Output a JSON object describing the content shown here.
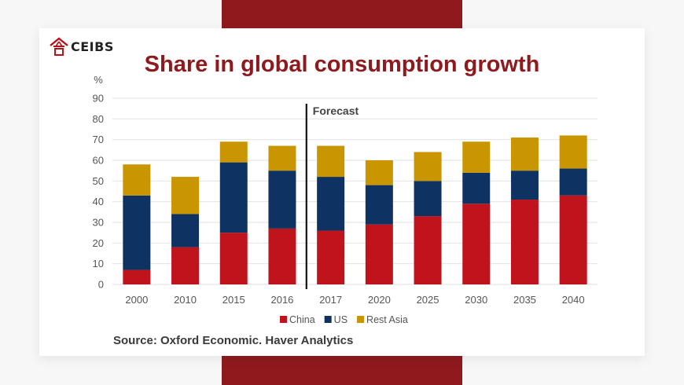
{
  "logo": {
    "text": "CEIBS",
    "icon": "ceibs-house-icon"
  },
  "source": "Source: Oxford Economic. Haver Analytics",
  "colors": {
    "china": "#c0141c",
    "us": "#0e3262",
    "rest_asia": "#c99500",
    "title": "#8f1a1e",
    "band": "#8f1a1e"
  },
  "chart_data": {
    "type": "bar",
    "stacked": true,
    "title": "Share in global consumption growth",
    "ylabel": "%",
    "xlabel": "",
    "ylim": [
      0,
      90
    ],
    "yticks": [
      0,
      10,
      20,
      30,
      40,
      50,
      60,
      70,
      80,
      90
    ],
    "grid": true,
    "legend_position": "bottom",
    "annotation": {
      "text": "Forecast",
      "after_category": "2016"
    },
    "categories": [
      "2000",
      "2010",
      "2015",
      "2016",
      "2017",
      "2020",
      "2025",
      "2030",
      "2035",
      "2040"
    ],
    "series": [
      {
        "name": "China",
        "color": "#c0141c",
        "values": [
          7,
          18,
          25,
          27,
          26,
          29,
          33,
          39,
          41,
          43
        ]
      },
      {
        "name": "US",
        "color": "#0e3262",
        "values": [
          36,
          16,
          34,
          28,
          26,
          19,
          17,
          15,
          14,
          13
        ]
      },
      {
        "name": "Rest Asia",
        "color": "#c99500",
        "values": [
          15,
          18,
          10,
          12,
          15,
          12,
          14,
          15,
          16,
          16
        ]
      }
    ]
  }
}
